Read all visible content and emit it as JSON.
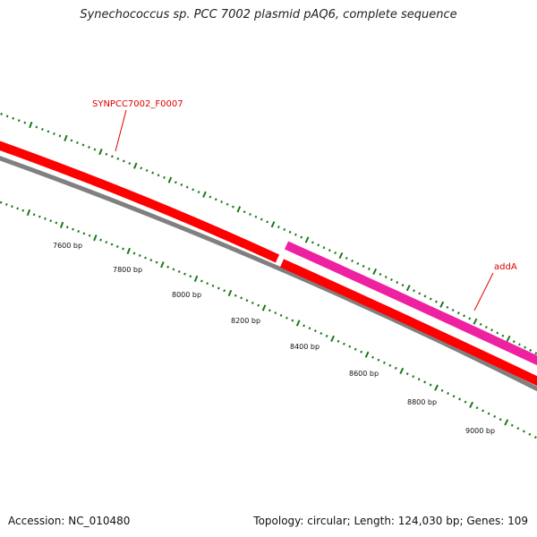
{
  "title": "Synechococcus sp. PCC 7002 plasmid pAQ6, complete sequence",
  "footer": {
    "accession": "Accession: NC_010480",
    "topology": "Topology: circular; Length: 124,030 bp; Genes: 109"
  },
  "scale_labels": [
    "7600 bp",
    "7800 bp",
    "8000 bp",
    "8200 bp",
    "8400 bp",
    "8600 bp",
    "8800 bp",
    "9000 bp"
  ],
  "genes": [
    {
      "name": "SYNPCC7002_F0007",
      "strand": "forward",
      "color": "#ff0000"
    },
    {
      "name": "addA",
      "strand": "forward",
      "color": "#ee22a0"
    },
    {
      "name": "",
      "strand": "forward",
      "color": "#ff0000"
    }
  ],
  "colors": {
    "backbone": "#808080",
    "tick_marks": "#1a7a1a",
    "gene_label": "#e00000"
  }
}
